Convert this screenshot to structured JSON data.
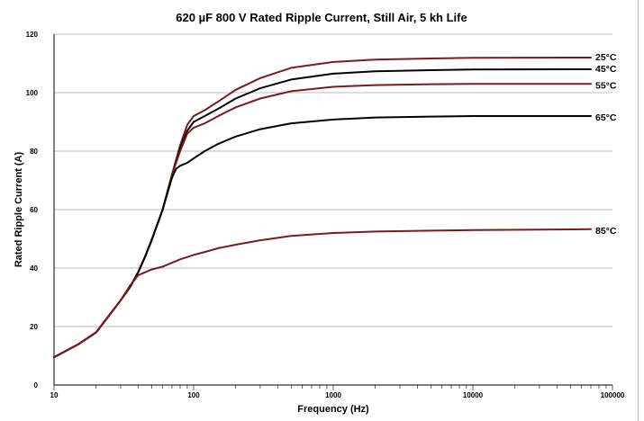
{
  "chart_data": {
    "type": "line",
    "title": "620 µF 800 V Rated Ripple Current, Still Air, 5 kh Life",
    "xlabel": "Frequency (Hz)",
    "ylabel": "Rated Ripple Current (A)",
    "x_scale": "log",
    "xlim": [
      10,
      100000
    ],
    "ylim": [
      0,
      120
    ],
    "x_ticks": [
      "10",
      "100",
      "1000",
      "10000",
      "100000"
    ],
    "y_ticks": [
      "0",
      "20",
      "40",
      "60",
      "80",
      "100",
      "120"
    ],
    "grid": "horizontal",
    "series": [
      {
        "name": "25°C",
        "color": "#7a1c1c",
        "x": [
          10,
          15,
          20,
          25,
          30,
          35,
          40,
          45,
          50,
          60,
          70,
          80,
          90,
          100,
          120,
          150,
          200,
          300,
          500,
          1000,
          2000,
          5000,
          10000,
          70000
        ],
        "y": [
          9.5,
          14,
          18,
          24,
          29,
          33.5,
          38.5,
          44,
          49.5,
          60,
          72,
          82,
          89,
          92,
          94,
          97,
          101,
          105,
          108.5,
          110.5,
          111.3,
          111.7,
          111.9,
          112
        ]
      },
      {
        "name": "45°C",
        "color": "#000000",
        "x": [
          10,
          15,
          20,
          25,
          30,
          35,
          40,
          45,
          50,
          60,
          70,
          80,
          90,
          100,
          120,
          150,
          200,
          300,
          500,
          1000,
          2000,
          5000,
          10000,
          70000
        ],
        "y": [
          9.5,
          14,
          18,
          24,
          29,
          33.5,
          38.5,
          44,
          49.5,
          60,
          72,
          81,
          87,
          90,
          92,
          94.5,
          98,
          101.5,
          104.5,
          106.5,
          107.3,
          107.7,
          107.9,
          108
        ]
      },
      {
        "name": "55°C",
        "color": "#7a1c1c",
        "x": [
          10,
          15,
          20,
          25,
          30,
          35,
          40,
          45,
          50,
          60,
          70,
          80,
          90,
          100,
          120,
          150,
          200,
          300,
          500,
          1000,
          2000,
          5000,
          10000,
          70000
        ],
        "y": [
          9.5,
          14,
          18,
          24,
          29,
          33.5,
          38.5,
          44,
          49.5,
          60,
          72,
          80,
          86,
          88,
          89.5,
          92,
          95,
          98,
          100.5,
          102,
          102.6,
          102.9,
          103,
          103
        ]
      },
      {
        "name": "65°C",
        "color": "#000000",
        "x": [
          10,
          15,
          20,
          25,
          30,
          35,
          40,
          45,
          50,
          60,
          70,
          75,
          80,
          90,
          100,
          120,
          150,
          200,
          300,
          500,
          1000,
          2000,
          5000,
          10000,
          70000
        ],
        "y": [
          9.5,
          14,
          18,
          24,
          29,
          33.5,
          38.5,
          44,
          49.5,
          60,
          71,
          74,
          75,
          76,
          77.5,
          80,
          82.5,
          85,
          87.5,
          89.5,
          90.8,
          91.5,
          91.8,
          92,
          92
        ]
      },
      {
        "name": "85°C",
        "color": "#7a1c1c",
        "x": [
          10,
          15,
          20,
          25,
          30,
          35,
          40,
          50,
          60,
          70,
          80,
          100,
          120,
          150,
          200,
          300,
          500,
          1000,
          2000,
          5000,
          10000,
          70000
        ],
        "y": [
          9.5,
          14,
          18,
          24,
          29,
          34,
          37.5,
          39.5,
          40.5,
          41.8,
          43,
          44.5,
          45.5,
          46.8,
          48,
          49.5,
          51,
          52,
          52.5,
          52.8,
          53,
          53.3
        ]
      }
    ]
  }
}
